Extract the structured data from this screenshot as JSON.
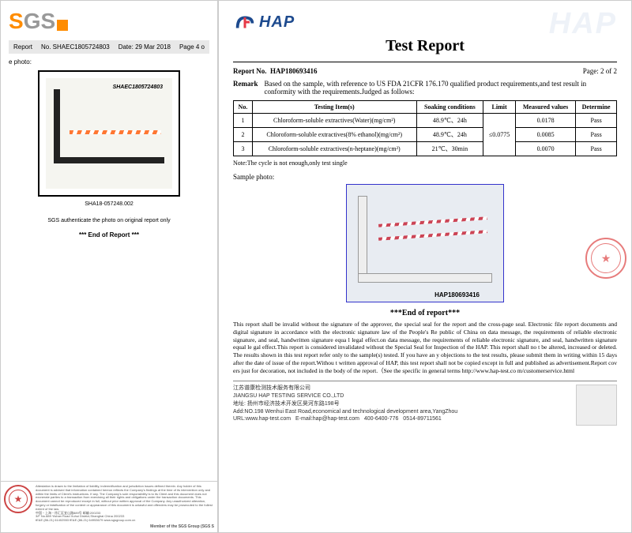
{
  "sgs": {
    "logo_g": "GS",
    "logo_s": "S",
    "report_label": "Report",
    "report_no_label": "No.",
    "report_no": "SHAEC1805724803",
    "date_label": "Date:",
    "date": "29 Mar 2018",
    "page": "Page 4 o",
    "photo_label": "e photo:",
    "photo_text": "SHAEC1805724803",
    "caption": "SHA18-057248.002",
    "auth": "SGS authenticate the photo on original report only",
    "eor": "*** End of Report ***",
    "fine_print": "Attestation is drawn to the limitation of liability, indemnification and jurisdiction issues defined therein. Any holder of this document is advised that information contained hereon reflects the Company's findings at the time of its intervention only and within the limits of Client's instructions. If any. The Company's sole responsibility is to its Client and this document does not exonerate parties to a transaction from exercising all their rights and obligations under the transaction documents. This document cannot be reproduced except in full, without prior written approval of the Company. Any unauthorized alteration, forgery or falsification of the content or appearance of this document is unlawful and offenders may be prosecuted to the fullest extent of the law.",
    "addr_cn": "中国・上海・徐汇区宜山路889号 邮编:200233",
    "addr_en": "3/F No.889 Yishan Road Xuhui District,Shanghai China 200233",
    "tel": "tE&E (86-21) 61402553",
    "fax": "fE&E (86-21) 64953679",
    "web": "www.sgsgroup.com.cn",
    "member": "Member of the SGS Group (SGS S"
  },
  "hap": {
    "logo": "HAP",
    "wm": "HAP",
    "title": "Test Report",
    "report_no_label": "Report No.",
    "report_no": "HAP180693416",
    "page": "Page: 2 of 2",
    "remark_label": "Remark",
    "remark": "Based on the sample, with reference to US FDA 21CFR 176.170 qualified product requirements,and test result in conformity with the requirements.Judged as follows:",
    "table": {
      "headers": [
        "No.",
        "Testing Item(s)",
        "Soaking conditions",
        "Limit",
        "Measured values",
        "Determine"
      ],
      "rows": [
        [
          "1",
          "Chloroform-soluble extractives(Water)(mg/cm²)",
          "48.9℃、24h",
          "",
          "0.0178",
          "Pass"
        ],
        [
          "2",
          "Chloroform-soluble extractives(8% ethanol)(mg/cm²)",
          "48.9℃、24h",
          "≤0.0775",
          "0.0085",
          "Pass"
        ],
        [
          "3",
          "Chloroform-soluble extractives(n-heptane)(mg/cm²)",
          "21℃、30min",
          "",
          "0.0070",
          "Pass"
        ]
      ]
    },
    "note": "Note:The cycle is not enough,only test single",
    "sample_label": "Sample photo:",
    "photo_caption": "HAP180693416",
    "eor": "***End of report***",
    "disclaimer": "This report shall be invalid without the signature of the approver, the special seal for the report and the cross-page seal. Electronic file report documents and digital signature in accordance with the electronic signature law of the People's Re public of China on data message, the requirements of reliable electronic signature, and seal, handwritten signature equa l legal effect.on data message, the requirements of reliable electronic signature, and seal, handwritten signature equal le gal effect.This report is considered invalidated without the Special Seal for Inspection of the HAP. This report shall no t be altered, increased or deleted. The results shown in this test report refer only to the sample(s) tested. If you have an y objections to the test results, please submit them in writing within 15 days after the date of issue of the report.Withou t written approval of HAP, this test report shall not be copied except in full and published as advertisement.Report cov ers just for decoration, not included in the body of the report.（See the specific in general terms http://www.hap-test.co m/customerservice.html",
    "company_cn": "江苏谱康检测技术服务有限公司",
    "company_en": "JIANGSU HAP TESTING SERVICE CO.,LTD",
    "addr_cn": "地址: 扬州市经济技术开发区昊河东路198号",
    "addr_en": "Add:NO.198 Wenhui East Road,economical and technological development area,YangZhou",
    "url": "URL:www.hap-test.com",
    "email": "E-mail:hap@hap-test.com",
    "tel": "400-6400-776",
    "fax": "0514-89711561"
  }
}
